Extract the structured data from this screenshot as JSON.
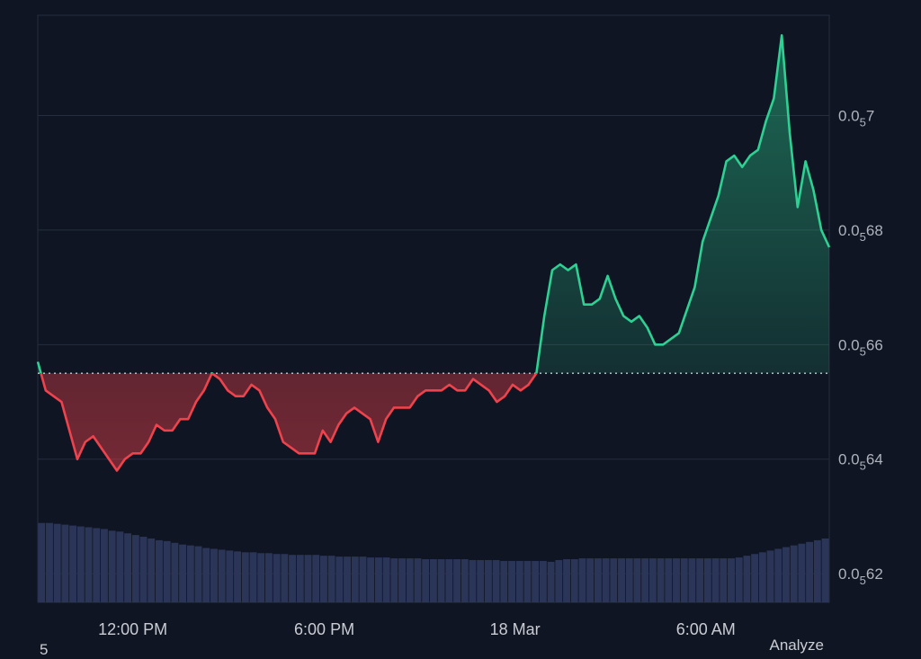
{
  "chart_data": {
    "type": "area",
    "baseline": 0.655,
    "ylim": [
      0.615,
      0.7175
    ],
    "y_ticks": [
      {
        "value": 0.7,
        "prefix": "0.0",
        "sub": "5",
        "suffix": "7"
      },
      {
        "value": 0.68,
        "prefix": "0.0",
        "sub": "5",
        "suffix": "68"
      },
      {
        "value": 0.66,
        "prefix": "0.0",
        "sub": "5",
        "suffix": "66"
      },
      {
        "value": 0.64,
        "prefix": "0.0",
        "sub": "5",
        "suffix": "64"
      },
      {
        "value": 0.62,
        "prefix": "0.0",
        "sub": "5",
        "suffix": "62"
      }
    ],
    "x_ticks": [
      {
        "label": "12:00 PM",
        "pos": 0.12
      },
      {
        "label": "6:00 PM",
        "pos": 0.362
      },
      {
        "label": "18 Mar",
        "pos": 0.603
      },
      {
        "label": "6:00 AM",
        "pos": 0.844
      }
    ],
    "xlim": [
      0,
      1
    ],
    "x": [
      0,
      0.01,
      0.02,
      0.03,
      0.04,
      0.05,
      0.06,
      0.07,
      0.08,
      0.09,
      0.1,
      0.11,
      0.12,
      0.13,
      0.14,
      0.15,
      0.16,
      0.17,
      0.18,
      0.19,
      0.2,
      0.21,
      0.22,
      0.23,
      0.24,
      0.25,
      0.26,
      0.27,
      0.28,
      0.29,
      0.3,
      0.31,
      0.32,
      0.33,
      0.34,
      0.35,
      0.36,
      0.37,
      0.38,
      0.39,
      0.4,
      0.41,
      0.42,
      0.43,
      0.44,
      0.45,
      0.46,
      0.47,
      0.48,
      0.49,
      0.5,
      0.51,
      0.52,
      0.53,
      0.54,
      0.55,
      0.56,
      0.57,
      0.58,
      0.59,
      0.6,
      0.61,
      0.62,
      0.63,
      0.64,
      0.65,
      0.66,
      0.67,
      0.68,
      0.69,
      0.7,
      0.71,
      0.72,
      0.73,
      0.74,
      0.75,
      0.76,
      0.77,
      0.78,
      0.79,
      0.8,
      0.81,
      0.82,
      0.83,
      0.84,
      0.85,
      0.86,
      0.87,
      0.88,
      0.89,
      0.9,
      0.91,
      0.92,
      0.93,
      0.94,
      0.95,
      0.96,
      0.97,
      0.98,
      0.99,
      1.0
    ],
    "price": [
      0.657,
      0.652,
      0.651,
      0.65,
      0.645,
      0.64,
      0.643,
      0.644,
      0.642,
      0.64,
      0.638,
      0.64,
      0.641,
      0.641,
      0.643,
      0.646,
      0.645,
      0.645,
      0.647,
      0.647,
      0.65,
      0.652,
      0.655,
      0.654,
      0.652,
      0.651,
      0.651,
      0.653,
      0.652,
      0.649,
      0.647,
      0.643,
      0.642,
      0.641,
      0.641,
      0.641,
      0.645,
      0.643,
      0.646,
      0.648,
      0.649,
      0.648,
      0.647,
      0.643,
      0.647,
      0.649,
      0.649,
      0.649,
      0.651,
      0.652,
      0.652,
      0.652,
      0.653,
      0.652,
      0.652,
      0.654,
      0.653,
      0.652,
      0.65,
      0.651,
      0.653,
      0.652,
      0.653,
      0.655,
      0.665,
      0.673,
      0.674,
      0.673,
      0.674,
      0.667,
      0.667,
      0.668,
      0.672,
      0.668,
      0.665,
      0.664,
      0.665,
      0.663,
      0.66,
      0.66,
      0.661,
      0.662,
      0.666,
      0.67,
      0.678,
      0.682,
      0.686,
      0.692,
      0.693,
      0.691,
      0.693,
      0.694,
      0.699,
      0.703,
      0.714,
      0.697,
      0.684,
      0.692,
      0.687,
      0.68,
      0.677
    ],
    "volume": [
      0.92,
      0.92,
      0.91,
      0.9,
      0.89,
      0.88,
      0.87,
      0.86,
      0.85,
      0.83,
      0.82,
      0.8,
      0.78,
      0.76,
      0.74,
      0.72,
      0.71,
      0.69,
      0.67,
      0.66,
      0.65,
      0.63,
      0.62,
      0.61,
      0.6,
      0.59,
      0.58,
      0.58,
      0.57,
      0.57,
      0.56,
      0.56,
      0.55,
      0.55,
      0.55,
      0.55,
      0.54,
      0.54,
      0.53,
      0.53,
      0.53,
      0.53,
      0.52,
      0.52,
      0.52,
      0.51,
      0.51,
      0.51,
      0.51,
      0.5,
      0.5,
      0.5,
      0.5,
      0.5,
      0.5,
      0.49,
      0.49,
      0.49,
      0.49,
      0.48,
      0.48,
      0.48,
      0.48,
      0.48,
      0.48,
      0.47,
      0.49,
      0.5,
      0.5,
      0.51,
      0.51,
      0.51,
      0.51,
      0.51,
      0.51,
      0.51,
      0.51,
      0.51,
      0.51,
      0.51,
      0.51,
      0.51,
      0.51,
      0.51,
      0.51,
      0.51,
      0.51,
      0.51,
      0.51,
      0.52,
      0.54,
      0.56,
      0.58,
      0.6,
      0.62,
      0.64,
      0.66,
      0.68,
      0.7,
      0.72,
      0.74
    ],
    "grid": true,
    "colors": {
      "up": "#2ed193",
      "down": "#f0424c",
      "volume": "#2b3558",
      "grid": "#262d3d",
      "baseline": "#c8ccd4"
    }
  },
  "footer": {
    "left_text": "5",
    "right_text": "Analyze"
  }
}
